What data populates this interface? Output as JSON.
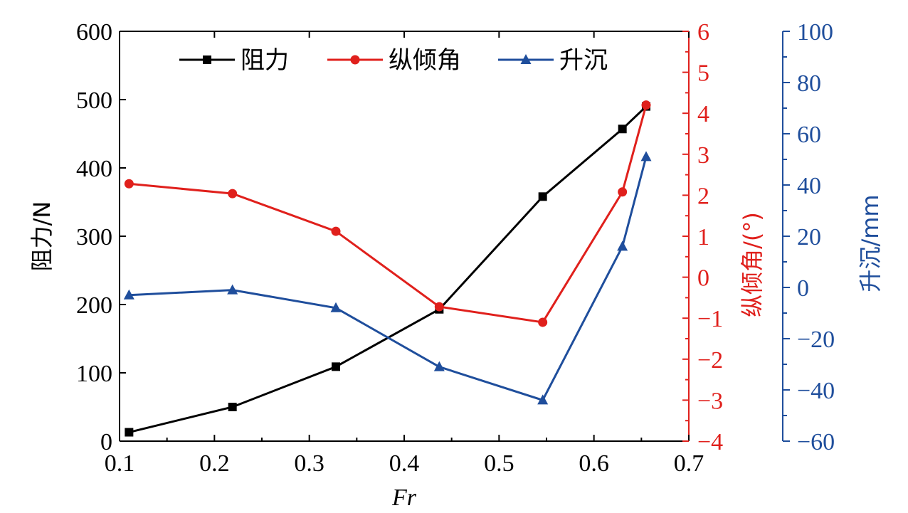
{
  "chart_data": {
    "type": "line",
    "xlabel": "Fr",
    "x_ticks": [
      "0.1",
      "0.2",
      "0.3",
      "0.4",
      "0.5",
      "0.6",
      "0.7"
    ],
    "xlim": [
      0.1,
      0.7
    ],
    "grid": false,
    "legend_position": "top",
    "axes": {
      "left": {
        "label": "阻力/N",
        "color": "#000000",
        "ylim": [
          0,
          600
        ],
        "ticks": [
          "0",
          "100",
          "200",
          "300",
          "400",
          "500",
          "600"
        ]
      },
      "right1": {
        "label": "纵倾角/(°)",
        "color": "#e0201c",
        "ylim": [
          -4,
          6
        ],
        "ticks": [
          "−4",
          "−3",
          "−2",
          "−1",
          "0",
          "1",
          "2",
          "3",
          "4",
          "5",
          "6"
        ]
      },
      "right2": {
        "label": "升沉/mm",
        "color": "#1f4e9c",
        "ylim": [
          -60,
          100
        ],
        "ticks": [
          "−60",
          "−40",
          "−20",
          "0",
          "20",
          "40",
          "60",
          "80",
          "100"
        ]
      }
    },
    "series": [
      {
        "name": "阻力",
        "axis": "left",
        "color": "#000000",
        "marker": "square",
        "x": [
          0.11,
          0.219,
          0.328,
          0.437,
          0.546,
          0.63,
          0.655
        ],
        "y": [
          13,
          50,
          109,
          193,
          358,
          457,
          490
        ]
      },
      {
        "name": "纵倾角",
        "axis": "right1",
        "color": "#e0201c",
        "marker": "circle",
        "x": [
          0.11,
          0.219,
          0.328,
          0.437,
          0.546,
          0.63,
          0.655
        ],
        "y": [
          2.28,
          2.04,
          1.12,
          -0.72,
          -1.1,
          2.08,
          4.2
        ]
      },
      {
        "name": "升沉",
        "axis": "right2",
        "color": "#1f4e9c",
        "marker": "triangle",
        "x": [
          0.11,
          0.219,
          0.328,
          0.437,
          0.546,
          0.63,
          0.655
        ],
        "y": [
          -3,
          -1,
          -8,
          -31,
          -44,
          16,
          51
        ]
      }
    ]
  }
}
